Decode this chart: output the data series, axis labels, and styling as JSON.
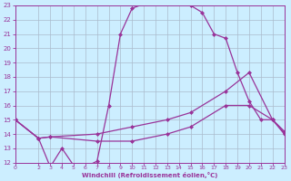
{
  "xlabel": "Windchill (Refroidissement éolien,°C)",
  "bg_color": "#cceeff",
  "line_color": "#993399",
  "grid_color": "#aabbcc",
  "xlim": [
    0,
    23
  ],
  "ylim": [
    12,
    23
  ],
  "xticks": [
    0,
    2,
    3,
    4,
    5,
    6,
    7,
    8,
    9,
    10,
    11,
    12,
    13,
    14,
    15,
    16,
    17,
    18,
    19,
    20,
    21,
    22,
    23
  ],
  "yticks": [
    12,
    13,
    14,
    15,
    16,
    17,
    18,
    19,
    20,
    21,
    22,
    23
  ],
  "series1": [
    [
      0,
      15.0
    ],
    [
      2,
      13.7
    ],
    [
      3,
      11.7
    ],
    [
      4,
      13.0
    ],
    [
      5,
      11.8
    ],
    [
      6,
      11.7
    ],
    [
      7,
      12.1
    ],
    [
      8,
      16.0
    ],
    [
      9,
      21.0
    ],
    [
      10,
      22.8
    ],
    [
      11,
      23.1
    ],
    [
      12,
      23.1
    ],
    [
      13,
      23.1
    ],
    [
      14,
      23.1
    ],
    [
      15,
      23.0
    ],
    [
      16,
      22.5
    ],
    [
      17,
      21.0
    ],
    [
      18,
      20.7
    ],
    [
      19,
      18.3
    ],
    [
      20,
      16.3
    ],
    [
      21,
      15.0
    ],
    [
      22,
      15.0
    ],
    [
      23,
      14.1
    ]
  ],
  "series2": [
    [
      0,
      15.0
    ],
    [
      2,
      13.7
    ],
    [
      3,
      13.8
    ],
    [
      7,
      14.0
    ],
    [
      10,
      14.5
    ],
    [
      13,
      15.0
    ],
    [
      15,
      15.5
    ],
    [
      18,
      17.0
    ],
    [
      20,
      18.3
    ],
    [
      22,
      15.0
    ],
    [
      23,
      14.2
    ]
  ],
  "series3": [
    [
      0,
      15.0
    ],
    [
      2,
      13.7
    ],
    [
      3,
      13.8
    ],
    [
      7,
      13.5
    ],
    [
      10,
      13.5
    ],
    [
      13,
      14.0
    ],
    [
      15,
      14.5
    ],
    [
      18,
      16.0
    ],
    [
      20,
      16.0
    ],
    [
      22,
      15.0
    ],
    [
      23,
      14.0
    ]
  ]
}
